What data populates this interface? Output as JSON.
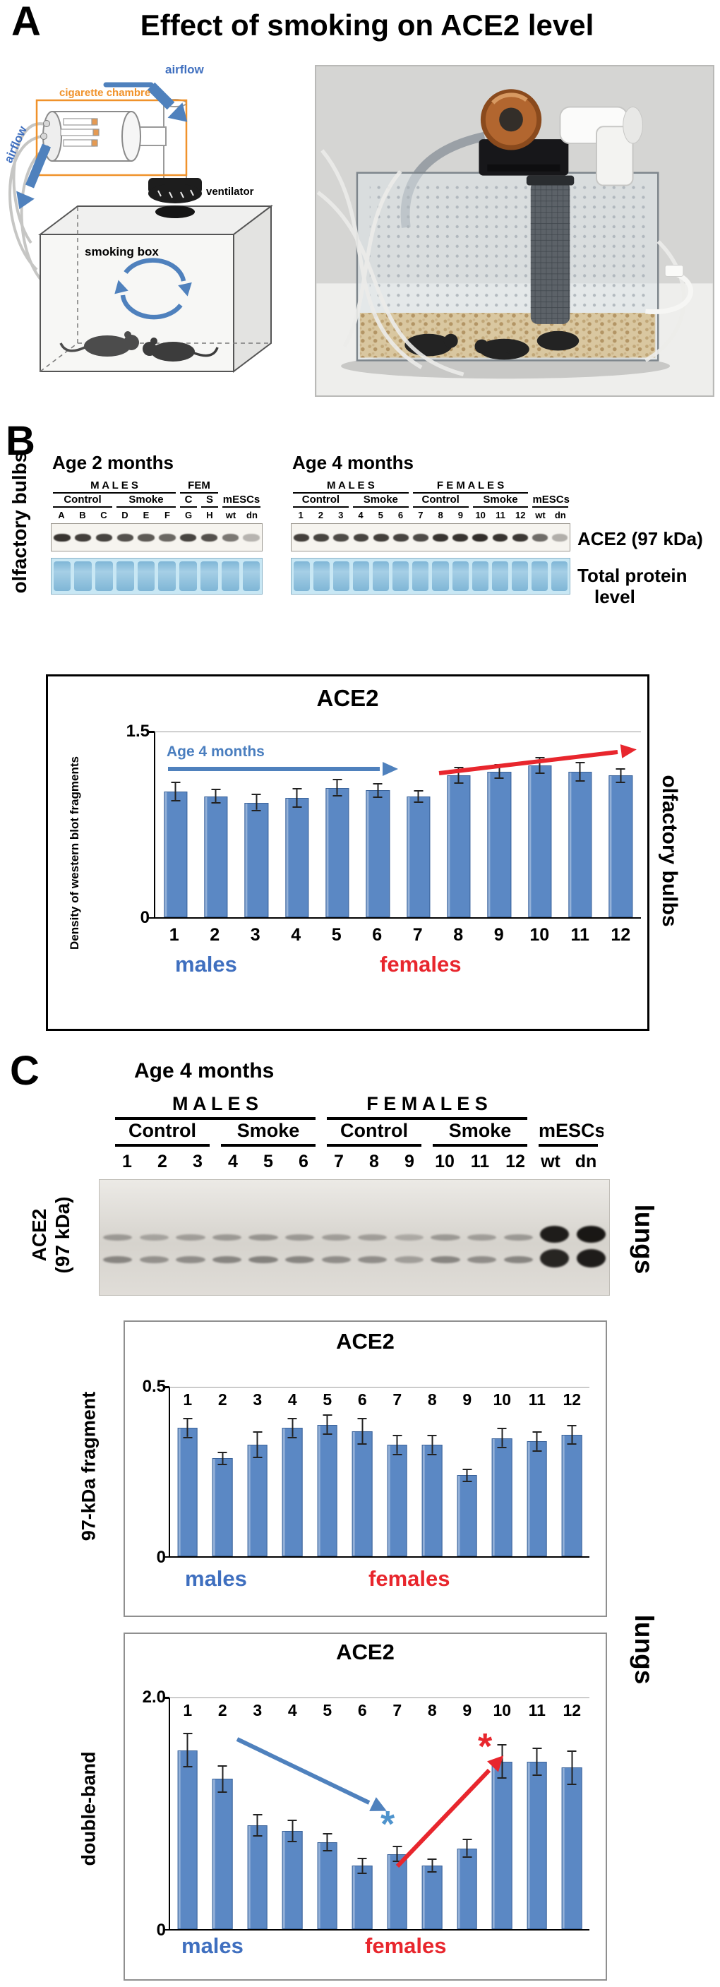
{
  "figure": {
    "panelA_label": "A",
    "panelB_label": "B",
    "panelC_label": "C",
    "title": "Effect of smoking on ACE2 level"
  },
  "colors": {
    "bar_blue": "#5b88c4",
    "males_blue": "#3f6fbf",
    "females_red": "#e8262d",
    "arrow_blue": "#4f81bd",
    "diagram_orange": "#f0922b"
  },
  "diagram": {
    "airflow_top": "airflow",
    "airflow_left": "airflow",
    "cigarette_chamber": "cigarette chambre",
    "ventilator": "ventilator",
    "smoking_box": "smoking box"
  },
  "panelB": {
    "left_label": "olfactory bulbs",
    "right_chart_label": "olfactory bulbs",
    "band_label_ace2": "ACE2 (97 kDa)",
    "band_label_total_1": "Total protein",
    "band_label_total_2": "level"
  },
  "panelC": {
    "age_label": "Age 4 months",
    "left_blot_label_1": "ACE2",
    "left_blot_label_2": "(97 kDa)",
    "right_label_1": "lungs",
    "right_label_2": "lungs"
  },
  "blots": {
    "ob2": {
      "title": "Age 2 months",
      "groups": [
        {
          "label": "M A L E S",
          "span": 6
        },
        {
          "label": "FEM",
          "span": 2
        },
        {
          "label": "",
          "span": 2
        }
      ],
      "subgroups": [
        {
          "label": "Control",
          "span": 3
        },
        {
          "label": "Smoke",
          "span": 3
        },
        {
          "label": "C",
          "span": 1
        },
        {
          "label": "S",
          "span": 1
        },
        {
          "label": "mESCs",
          "span": 2
        }
      ],
      "lanes": [
        "A",
        "B",
        "C",
        "D",
        "E",
        "F",
        "G",
        "H",
        "wt",
        "dn"
      ],
      "ace2_band_intensities": [
        0.85,
        0.8,
        0.78,
        0.72,
        0.68,
        0.62,
        0.78,
        0.72,
        0.55,
        0.28
      ]
    },
    "ob4": {
      "title": "Age 4 months",
      "groups": [
        {
          "label": "M A L E S",
          "span": 6
        },
        {
          "label": "F E M A L E S",
          "span": 6
        },
        {
          "label": "",
          "span": 2
        }
      ],
      "subgroups": [
        {
          "label": "Control",
          "span": 3
        },
        {
          "label": "Smoke",
          "span": 3
        },
        {
          "label": "Control",
          "span": 3
        },
        {
          "label": "Smoke",
          "span": 3
        },
        {
          "label": "mESCs",
          "span": 2
        }
      ],
      "lanes": [
        "1",
        "2",
        "3",
        "4",
        "5",
        "6",
        "7",
        "8",
        "9",
        "10",
        "11",
        "12",
        "wt",
        "dn"
      ],
      "ace2_band_intensities": [
        0.8,
        0.78,
        0.75,
        0.78,
        0.8,
        0.78,
        0.75,
        0.85,
        0.85,
        0.88,
        0.85,
        0.83,
        0.6,
        0.3
      ]
    },
    "lung": {
      "groups": [
        {
          "label": "M A L E S",
          "span": 6
        },
        {
          "label": "F E M A L E S",
          "span": 6
        },
        {
          "label": "",
          "span": 2
        }
      ],
      "subgroups": [
        {
          "label": "Control",
          "span": 3
        },
        {
          "label": "Smoke",
          "span": 3
        },
        {
          "label": "Control",
          "span": 3
        },
        {
          "label": "Smoke",
          "span": 3
        },
        {
          "label": "mESCs",
          "span": 2
        }
      ],
      "lanes": [
        "1",
        "2",
        "3",
        "4",
        "5",
        "6",
        "7",
        "8",
        "9",
        "10",
        "11",
        "12",
        "wt",
        "dn"
      ],
      "band1_intensities": [
        0.3,
        0.25,
        0.28,
        0.3,
        0.32,
        0.3,
        0.28,
        0.28,
        0.22,
        0.3,
        0.28,
        0.3,
        0.92,
        0.95
      ],
      "band2_intensities": [
        0.4,
        0.34,
        0.36,
        0.4,
        0.42,
        0.4,
        0.36,
        0.36,
        0.28,
        0.4,
        0.36,
        0.4,
        0.88,
        0.92
      ]
    }
  },
  "chart_data": [
    {
      "id": "ob-chart",
      "type": "bar",
      "title": "ACE2",
      "ylabel": "Density of western blot fragments",
      "xlabel": "",
      "ylim": [
        0,
        1.5
      ],
      "ymax_label": "1.5",
      "ymin_label": "0",
      "grid": "top-line-only",
      "legend": "none",
      "labels_position": "bottom",
      "categories": [
        "1",
        "2",
        "3",
        "4",
        "5",
        "6",
        "7",
        "8",
        "9",
        "10",
        "11",
        "12"
      ],
      "values": [
        1.02,
        0.98,
        0.93,
        0.97,
        1.05,
        1.03,
        0.98,
        1.15,
        1.18,
        1.23,
        1.18,
        1.15
      ],
      "errors": [
        0.08,
        0.06,
        0.07,
        0.08,
        0.07,
        0.06,
        0.05,
        0.07,
        0.06,
        0.07,
        0.08,
        0.06
      ],
      "bar_color": "#5b88c4",
      "males_label": "males",
      "females_label": "females",
      "arrow_blue_label": "Age 4 months",
      "side_label": "olfactory bulbs"
    },
    {
      "id": "lung97",
      "type": "bar",
      "title": "ACE2",
      "ylabel": "97-kDa fragment",
      "xlabel": "",
      "ylim": [
        0,
        0.5
      ],
      "ymax_label": "0.5",
      "ymin_label": "0",
      "grid": "top-line-only",
      "legend": "none",
      "labels_position": "top",
      "categories": [
        "1",
        "2",
        "3",
        "4",
        "5",
        "6",
        "7",
        "8",
        "9",
        "10",
        "11",
        "12"
      ],
      "values": [
        0.38,
        0.29,
        0.33,
        0.38,
        0.39,
        0.37,
        0.33,
        0.33,
        0.24,
        0.35,
        0.34,
        0.36
      ],
      "errors": [
        0.03,
        0.02,
        0.04,
        0.03,
        0.03,
        0.04,
        0.03,
        0.03,
        0.02,
        0.03,
        0.03,
        0.03
      ],
      "bar_color": "#5b88c4",
      "males_label": "males",
      "females_label": "females",
      "side_label": "lungs"
    },
    {
      "id": "lungDouble",
      "type": "bar",
      "title": "ACE2",
      "ylabel": "double-band",
      "xlabel": "",
      "ylim": [
        0,
        2.0
      ],
      "ymax_label": "2.0",
      "ymin_label": "0",
      "grid": "top-line-only",
      "legend": "none",
      "labels_position": "top",
      "categories": [
        "1",
        "2",
        "3",
        "4",
        "5",
        "6",
        "7",
        "8",
        "9",
        "10",
        "11",
        "12"
      ],
      "values": [
        1.55,
        1.3,
        0.9,
        0.85,
        0.75,
        0.55,
        0.65,
        0.55,
        0.7,
        1.45,
        1.45,
        1.4
      ],
      "errors": [
        0.15,
        0.12,
        0.1,
        0.1,
        0.08,
        0.07,
        0.07,
        0.06,
        0.08,
        0.15,
        0.12,
        0.15
      ],
      "bar_color": "#5b88c4",
      "males_label": "males",
      "females_label": "females",
      "asterisk_blue": "*",
      "asterisk_red": "*",
      "side_label": "lungs"
    }
  ]
}
